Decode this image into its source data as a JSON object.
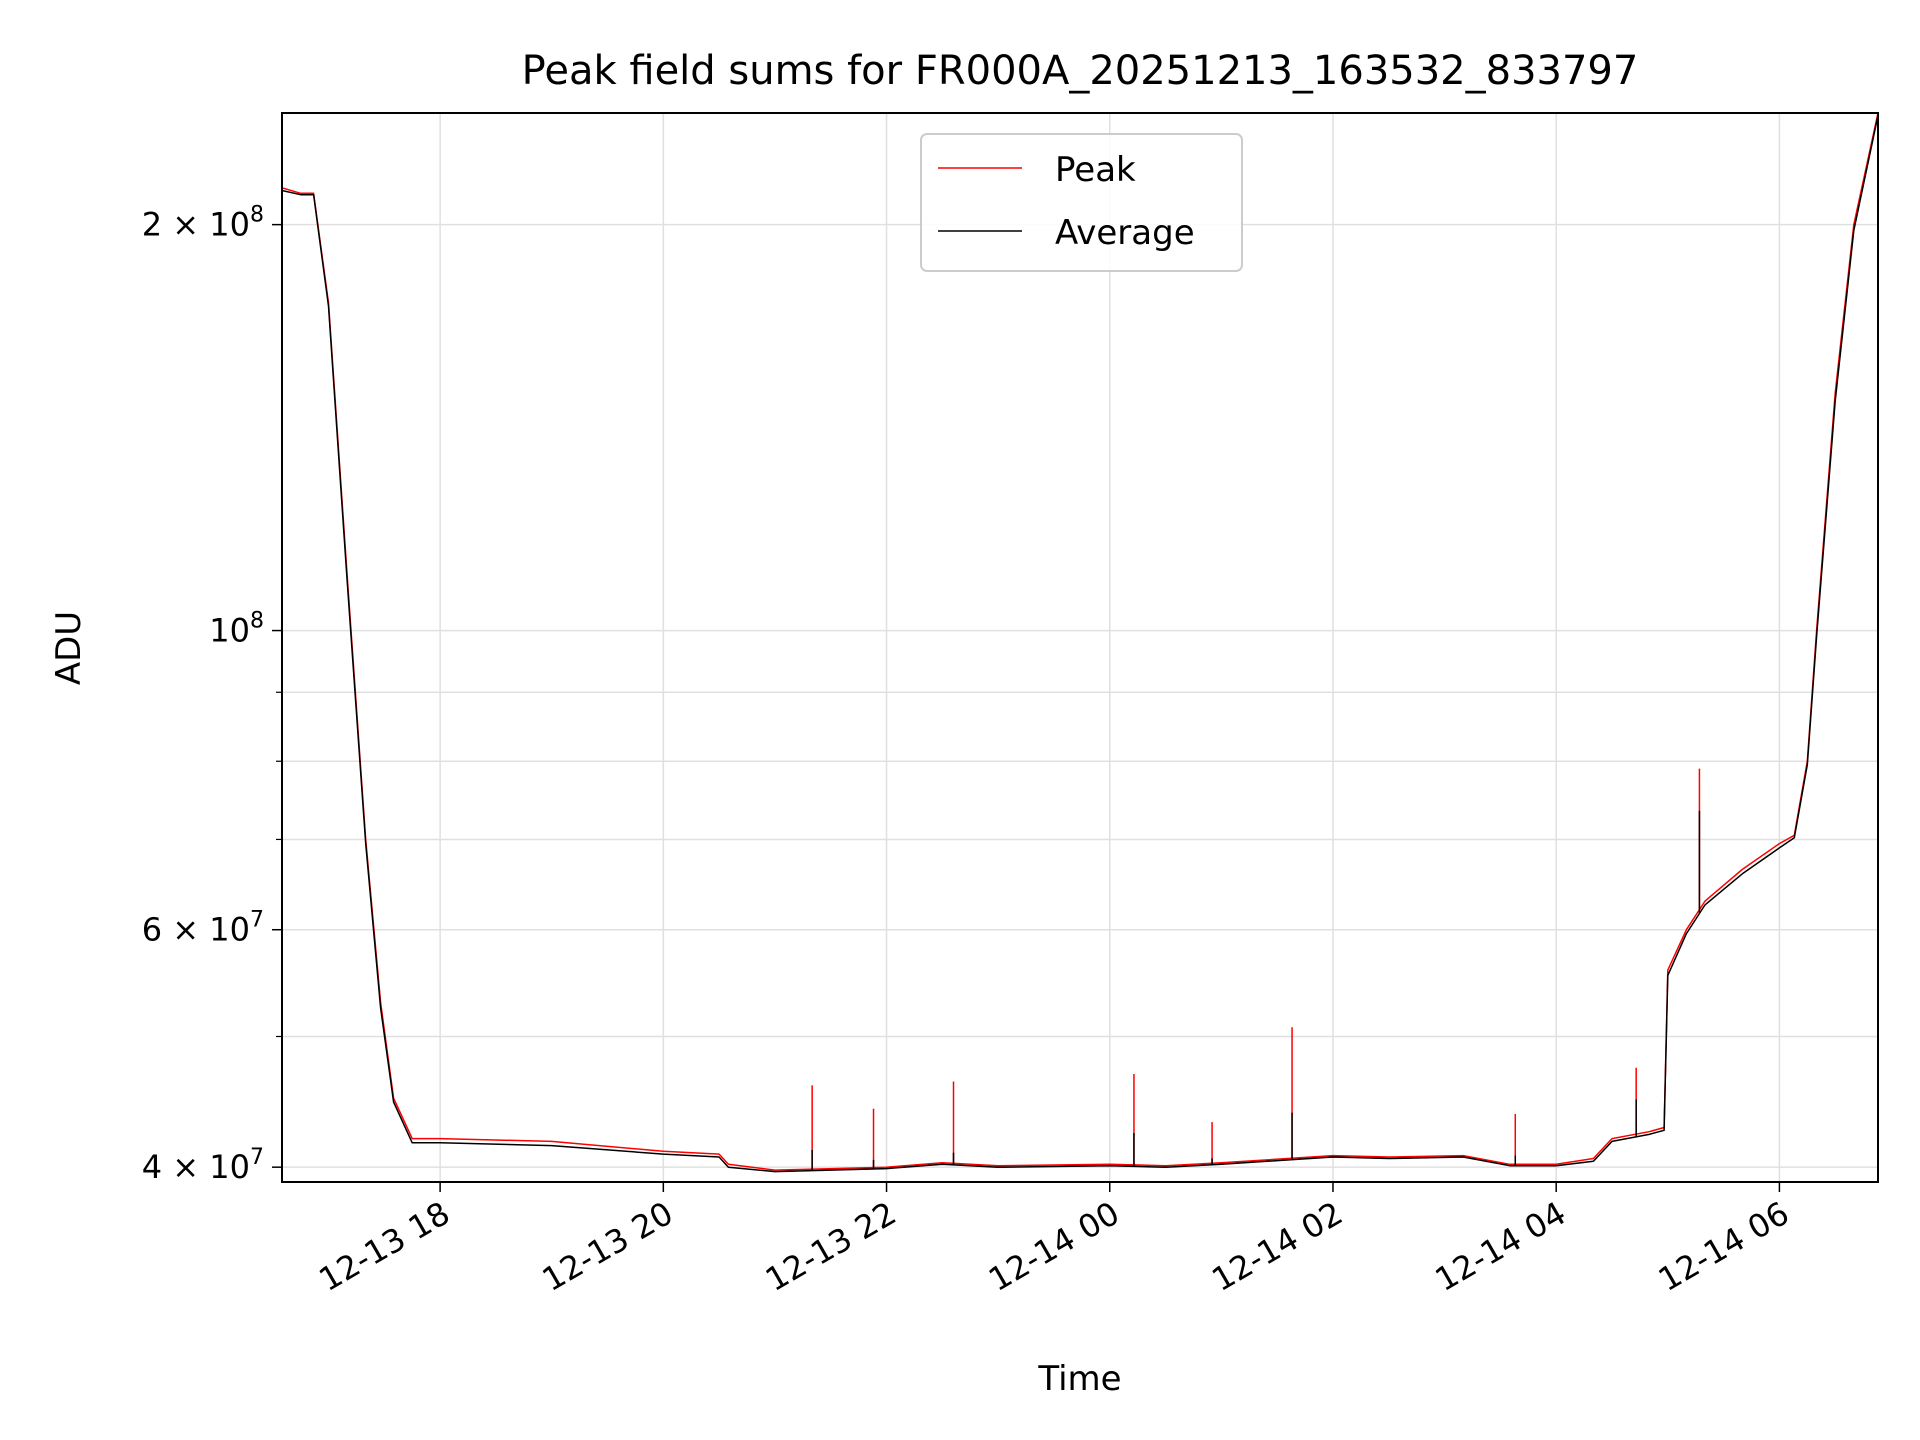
{
  "chart_data": {
    "type": "line",
    "title": "Peak field sums for FR000A_20251213_163532_833797",
    "xlabel": "Time",
    "ylabel": "ADU",
    "yscale": "log",
    "grid": true,
    "legend_position": "upper center",
    "xlim": [
      "2025-12-13 16:35",
      "2025-12-14 06:53"
    ],
    "ylim": [
      39000000,
      242000000
    ],
    "x_ticks": [
      {
        "label": "12-13 18",
        "value": "2025-12-13 18:00"
      },
      {
        "label": "12-13 20",
        "value": "2025-12-13 20:00"
      },
      {
        "label": "12-13 22",
        "value": "2025-12-13 22:00"
      },
      {
        "label": "12-14 00",
        "value": "2025-12-14 00:00"
      },
      {
        "label": "12-14 02",
        "value": "2025-12-14 02:00"
      },
      {
        "label": "12-14 04",
        "value": "2025-12-14 04:00"
      },
      {
        "label": "12-14 06",
        "value": "2025-12-14 06:00"
      }
    ],
    "y_ticks_major": [
      {
        "mantissa": "2 × 10",
        "exp": "8",
        "value": 200000000
      },
      {
        "mantissa": "10",
        "exp": "8",
        "value": 100000000
      },
      {
        "mantissa": "6 × 10",
        "exp": "7",
        "value": 60000000
      },
      {
        "mantissa": "4 × 10",
        "exp": "7",
        "value": 40000000
      }
    ],
    "y_ticks_minor": [
      50000000,
      70000000,
      80000000,
      90000000
    ],
    "series": [
      {
        "name": "Peak",
        "color": "#ff0000",
        "points": [
          [
            "2025-12-13 16:35",
            213000000
          ],
          [
            "2025-12-13 16:45",
            211000000
          ],
          [
            "2025-12-13 16:52",
            211000000
          ],
          [
            "2025-12-13 17:00",
            175000000
          ],
          [
            "2025-12-13 17:10",
            110000000
          ],
          [
            "2025-12-13 17:20",
            70000000
          ],
          [
            "2025-12-13 17:28",
            53000000
          ],
          [
            "2025-12-13 17:35",
            45000000
          ],
          [
            "2025-12-13 17:45",
            42000000
          ],
          [
            "2025-12-13 18:00",
            42000000
          ],
          [
            "2025-12-13 19:00",
            41800000
          ],
          [
            "2025-12-13 20:00",
            41100000
          ],
          [
            "2025-12-13 20:30",
            40900000
          ],
          [
            "2025-12-13 20:35",
            40200000
          ],
          [
            "2025-12-13 21:00",
            39800000
          ],
          [
            "2025-12-13 22:00",
            40000000
          ],
          [
            "2025-12-13 22:30",
            40300000
          ],
          [
            "2025-12-13 23:00",
            40100000
          ],
          [
            "2025-12-14 00:00",
            40200000
          ],
          [
            "2025-12-14 00:30",
            40100000
          ],
          [
            "2025-12-14 01:00",
            40300000
          ],
          [
            "2025-12-14 02:00",
            40800000
          ],
          [
            "2025-12-14 02:30",
            40700000
          ],
          [
            "2025-12-14 03:10",
            40800000
          ],
          [
            "2025-12-14 03:35",
            40200000
          ],
          [
            "2025-12-14 04:00",
            40200000
          ],
          [
            "2025-12-14 04:20",
            40600000
          ],
          [
            "2025-12-14 04:30",
            42000000
          ],
          [
            "2025-12-14 04:50",
            42500000
          ],
          [
            "2025-12-14 04:58",
            42800000
          ],
          [
            "2025-12-14 05:00",
            56000000
          ],
          [
            "2025-12-14 05:10",
            60000000
          ],
          [
            "2025-12-14 05:20",
            63000000
          ],
          [
            "2025-12-14 05:40",
            66500000
          ],
          [
            "2025-12-14 06:00",
            69500000
          ],
          [
            "2025-12-14 06:08",
            70500000
          ],
          [
            "2025-12-14 06:15",
            80000000
          ],
          [
            "2025-12-14 06:20",
            100000000
          ],
          [
            "2025-12-14 06:30",
            150000000
          ],
          [
            "2025-12-14 06:40",
            200000000
          ],
          [
            "2025-12-14 06:53",
            242000000
          ]
        ],
        "spikes": [
          [
            "2025-12-13 21:20",
            46000000
          ],
          [
            "2025-12-13 21:53",
            44200000
          ],
          [
            "2025-12-13 22:36",
            46300000
          ],
          [
            "2025-12-14 00:13",
            46900000
          ],
          [
            "2025-12-14 00:55",
            43200000
          ],
          [
            "2025-12-14 01:38",
            50800000
          ],
          [
            "2025-12-14 03:38",
            43800000
          ],
          [
            "2025-12-14 04:43",
            47400000
          ],
          [
            "2025-12-14 05:17",
            79000000
          ]
        ]
      },
      {
        "name": "Average",
        "color": "#000000",
        "points": [
          [
            "2025-12-13 16:35",
            212000000
          ],
          [
            "2025-12-13 16:45",
            210500000
          ],
          [
            "2025-12-13 16:52",
            210500000
          ],
          [
            "2025-12-13 17:00",
            174000000
          ],
          [
            "2025-12-13 17:10",
            109000000
          ],
          [
            "2025-12-13 17:20",
            69500000
          ],
          [
            "2025-12-13 17:28",
            52500000
          ],
          [
            "2025-12-13 17:35",
            44700000
          ],
          [
            "2025-12-13 17:45",
            41700000
          ],
          [
            "2025-12-13 18:00",
            41700000
          ],
          [
            "2025-12-13 19:00",
            41500000
          ],
          [
            "2025-12-13 20:00",
            40900000
          ],
          [
            "2025-12-13 20:30",
            40700000
          ],
          [
            "2025-12-13 20:35",
            40000000
          ],
          [
            "2025-12-13 21:00",
            39700000
          ],
          [
            "2025-12-13 22:00",
            39900000
          ],
          [
            "2025-12-13 22:30",
            40200000
          ],
          [
            "2025-12-13 23:00",
            40000000
          ],
          [
            "2025-12-14 00:00",
            40100000
          ],
          [
            "2025-12-14 00:30",
            40000000
          ],
          [
            "2025-12-14 01:00",
            40200000
          ],
          [
            "2025-12-14 02:00",
            40700000
          ],
          [
            "2025-12-14 02:30",
            40600000
          ],
          [
            "2025-12-14 03:10",
            40700000
          ],
          [
            "2025-12-14 03:35",
            40100000
          ],
          [
            "2025-12-14 04:00",
            40100000
          ],
          [
            "2025-12-14 04:20",
            40400000
          ],
          [
            "2025-12-14 04:30",
            41800000
          ],
          [
            "2025-12-14 04:50",
            42300000
          ],
          [
            "2025-12-14 04:58",
            42600000
          ],
          [
            "2025-12-14 05:00",
            55500000
          ],
          [
            "2025-12-14 05:10",
            59600000
          ],
          [
            "2025-12-14 05:20",
            62600000
          ],
          [
            "2025-12-14 05:40",
            66000000
          ],
          [
            "2025-12-14 06:00",
            69000000
          ],
          [
            "2025-12-14 06:08",
            70200000
          ],
          [
            "2025-12-14 06:15",
            79500000
          ],
          [
            "2025-12-14 06:20",
            99000000
          ],
          [
            "2025-12-14 06:30",
            148000000
          ],
          [
            "2025-12-14 06:40",
            198000000
          ],
          [
            "2025-12-14 06:53",
            241000000
          ]
        ],
        "spikes": [
          [
            "2025-12-13 21:20",
            41200000
          ],
          [
            "2025-12-13 21:53",
            40500000
          ],
          [
            "2025-12-13 22:36",
            41000000
          ],
          [
            "2025-12-14 00:13",
            42400000
          ],
          [
            "2025-12-14 00:55",
            40600000
          ],
          [
            "2025-12-14 01:38",
            43900000
          ],
          [
            "2025-12-14 03:38",
            40800000
          ],
          [
            "2025-12-14 04:43",
            44900000
          ],
          [
            "2025-12-14 05:17",
            73500000
          ]
        ]
      }
    ]
  }
}
